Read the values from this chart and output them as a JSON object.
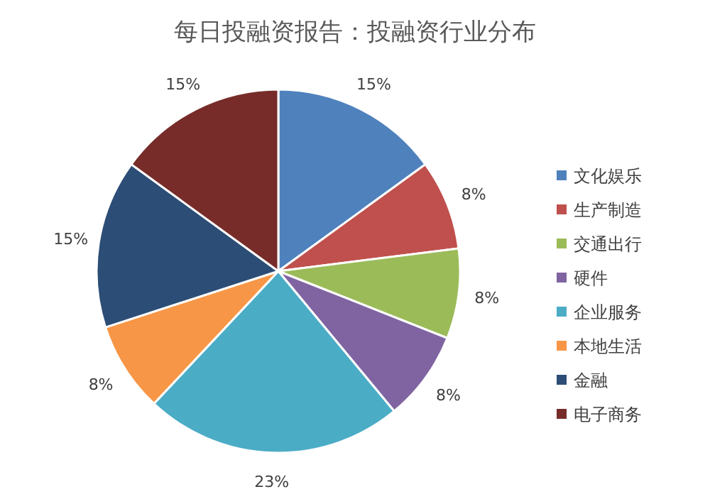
{
  "chart_data": {
    "type": "pie",
    "title": "每日投融资报告：投融资行业分布",
    "categories": [
      "文化娱乐",
      "生产制造",
      "交通出行",
      "硬件",
      "企业服务",
      "本地生活",
      "金融",
      "电子商务"
    ],
    "values": [
      15,
      8,
      8,
      8,
      23,
      8,
      15,
      15
    ],
    "value_labels": [
      "15%",
      "8%",
      "8%",
      "8%",
      "23%",
      "8%",
      "15%",
      "15%"
    ],
    "colors": [
      "#4f81bd",
      "#c0504d",
      "#9bbb59",
      "#8064a2",
      "#4bacc6",
      "#f79646",
      "#2c4d75",
      "#772c2a"
    ],
    "legend": "right"
  }
}
